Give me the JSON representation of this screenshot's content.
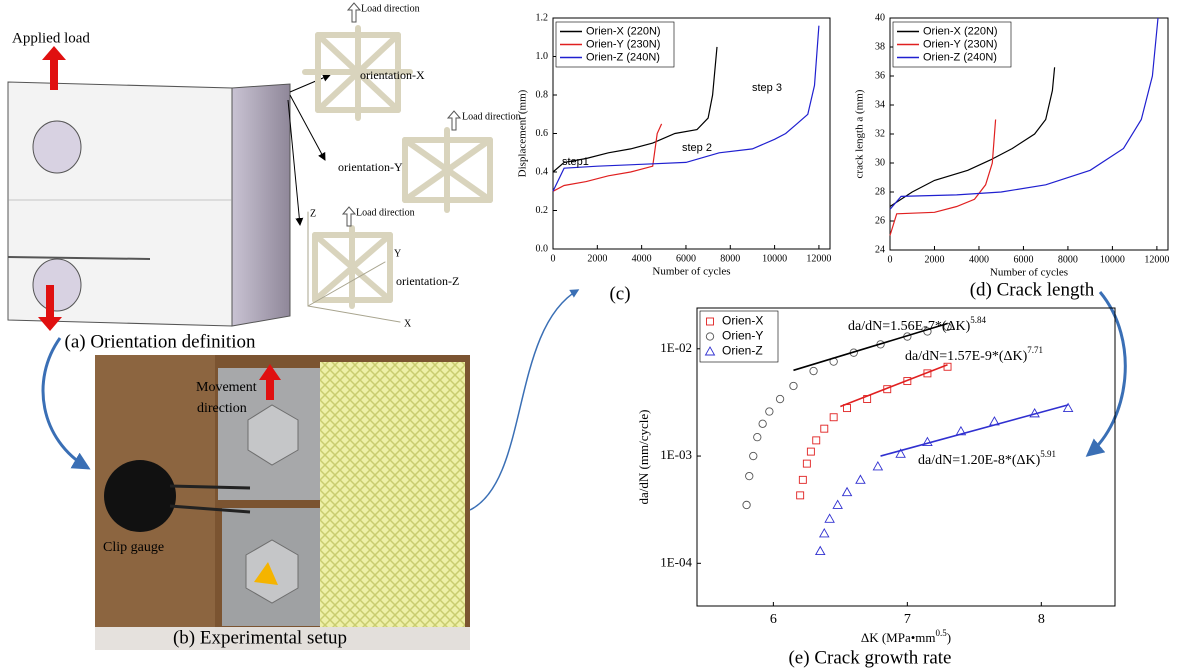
{
  "panel_a": {
    "applied_load": "Applied load",
    "load_direction": [
      "Load direction",
      "Load direction",
      "Load direction"
    ],
    "orientations": [
      "orientation-X",
      "orientation-Y",
      "orientation-Z"
    ],
    "axes": [
      "Z",
      "Y",
      "X"
    ],
    "caption": "(a) Orientation definition"
  },
  "panel_b": {
    "movement_direction": [
      "Movement",
      "direction"
    ],
    "clip_gauge": "Clip gauge",
    "caption": "(b) Experimental setup"
  },
  "chart_data": [
    {
      "type": "line",
      "caption": "(c)",
      "x_label": "Number of cycles",
      "y_label": "Displacement (mm)",
      "xlim": [
        0,
        12500
      ],
      "ylim": [
        0,
        1.2
      ],
      "xticks": [
        0,
        2000,
        4000,
        6000,
        8000,
        10000,
        12000
      ],
      "yticks": [
        {
          "value": 0,
          "label": "0.0"
        },
        {
          "value": 0.2,
          "label": "0.2"
        },
        {
          "value": 0.4,
          "label": "0.4"
        },
        {
          "value": 0.6,
          "label": "0.6"
        },
        {
          "value": 0.8,
          "label": "0.8"
        },
        {
          "value": 1.0,
          "label": "1.0"
        },
        {
          "value": 1.2,
          "label": "1.2"
        }
      ],
      "series": [
        {
          "name": "Orien-X (220N)",
          "color": "#000000",
          "x": [
            0,
            500,
            1500,
            2500,
            3500,
            4500,
            5500,
            6500,
            7000,
            7200,
            7400
          ],
          "values": [
            0.4,
            0.45,
            0.47,
            0.5,
            0.52,
            0.55,
            0.6,
            0.62,
            0.68,
            0.8,
            1.05
          ]
        },
        {
          "name": "Orien-Y (230N)",
          "color": "#e02020",
          "x": [
            0,
            500,
            1500,
            2500,
            3500,
            4500,
            4700,
            4900
          ],
          "values": [
            0.3,
            0.33,
            0.35,
            0.38,
            0.4,
            0.43,
            0.6,
            0.65
          ]
        },
        {
          "name": "Orien-Z (240N)",
          "color": "#2020d0",
          "x": [
            0,
            500,
            2000,
            4000,
            6000,
            7500,
            9000,
            10000,
            10500,
            11000,
            11500,
            11800,
            12000
          ],
          "values": [
            0.3,
            0.42,
            0.43,
            0.44,
            0.45,
            0.5,
            0.52,
            0.57,
            0.6,
            0.65,
            0.7,
            0.85,
            1.16
          ]
        }
      ],
      "annotations": [
        "step1",
        "step 2",
        "step 3"
      ],
      "annotation_color": "#2020d0"
    },
    {
      "type": "line",
      "caption": "(d) Crack length",
      "x_label": "Number of cycles",
      "y_label": "crack length a (mm)",
      "xlim": [
        0,
        12500
      ],
      "ylim": [
        24,
        40
      ],
      "xticks": [
        0,
        2000,
        4000,
        6000,
        8000,
        10000,
        12000
      ],
      "yticks": [
        24,
        26,
        28,
        30,
        32,
        34,
        36,
        38,
        40
      ],
      "series": [
        {
          "name": "Orien-X (220N)",
          "color": "#000000",
          "x": [
            0,
            1000,
            2000,
            3500,
            4500,
            5500,
            6500,
            7000,
            7300,
            7400
          ],
          "values": [
            27,
            28,
            28.8,
            29.5,
            30.2,
            31,
            32,
            33,
            35,
            36.6
          ]
        },
        {
          "name": "Orien-Y (230N)",
          "color": "#e02020",
          "x": [
            0,
            300,
            2000,
            3000,
            3800,
            4300,
            4600,
            4750
          ],
          "values": [
            25,
            26.5,
            26.6,
            27,
            27.5,
            28.5,
            30,
            33
          ]
        },
        {
          "name": "Orien-Z (240N)",
          "color": "#2020d0",
          "x": [
            0,
            500,
            3000,
            5000,
            7000,
            9000,
            10500,
            11300,
            11800,
            12050
          ],
          "values": [
            26.8,
            27.7,
            27.8,
            28,
            28.5,
            29.5,
            31,
            33,
            36,
            40
          ]
        }
      ]
    },
    {
      "type": "scatter",
      "caption": "(e) Crack growth rate",
      "x_label": [
        "ΔK (MPa•mm",
        "0.5",
        ")"
      ],
      "y_label": "da/dN (mm/cycle)",
      "log_y": true,
      "xlim": [
        5.43,
        8.55
      ],
      "ylim": [
        4e-05,
        0.024
      ],
      "xticks": [
        6,
        7,
        8
      ],
      "yticks": [
        {
          "value": 0.01,
          "label": "1E-02"
        },
        {
          "value": 0.001,
          "label": "1E-03"
        },
        {
          "value": 0.0001,
          "label": "1E-04"
        }
      ],
      "series": [
        {
          "name": "Orien-X",
          "color": "#e02020",
          "marker": "square",
          "x": [
            6.2,
            6.22,
            6.25,
            6.28,
            6.32,
            6.38,
            6.45,
            6.55,
            6.7,
            6.85,
            7.0,
            7.15,
            7.3
          ],
          "values": [
            0.00043,
            0.0006,
            0.00085,
            0.0011,
            0.0014,
            0.0018,
            0.0023,
            0.0028,
            0.0034,
            0.0042,
            0.005,
            0.0059,
            0.0068
          ],
          "fit": {
            "x": [
              6.5,
              7.3
            ],
            "values": [
              0.0029,
              0.0071
            ]
          },
          "equation": "da/dN=1.57E-9*(ΔK)",
          "exponent": "7.71"
        },
        {
          "name": "Orien-Y",
          "color": "#555555",
          "marker": "circle",
          "x": [
            5.8,
            5.82,
            5.85,
            5.88,
            5.92,
            5.97,
            6.05,
            6.15,
            6.3,
            6.45,
            6.6,
            6.8,
            7.0,
            7.15,
            7.3
          ],
          "values": [
            0.00035,
            0.00065,
            0.001,
            0.0015,
            0.002,
            0.0026,
            0.0034,
            0.0045,
            0.0062,
            0.0076,
            0.0092,
            0.011,
            0.013,
            0.0145,
            0.016
          ],
          "fit": {
            "x": [
              6.15,
              7.3
            ],
            "values": [
              0.0063,
              0.0172
            ]
          },
          "fit_color": "#000000",
          "equation": "da/dN=1.56E-7*(ΔK)",
          "exponent": "5.84"
        },
        {
          "name": "Orien-Z",
          "color": "#3030d0",
          "marker": "triangle",
          "x": [
            6.35,
            6.38,
            6.42,
            6.48,
            6.55,
            6.65,
            6.78,
            6.95,
            7.15,
            7.4,
            7.65,
            7.95,
            8.2
          ],
          "values": [
            0.00013,
            0.00019,
            0.00026,
            0.00035,
            0.00046,
            0.0006,
            0.0008,
            0.00105,
            0.00135,
            0.0017,
            0.0021,
            0.0025,
            0.0028
          ],
          "fit": {
            "x": [
              6.8,
              8.2
            ],
            "values": [
              0.001,
              0.003
            ]
          },
          "equation": "da/dN=1.20E-8*(ΔK)",
          "exponent": "5.91"
        }
      ]
    }
  ]
}
